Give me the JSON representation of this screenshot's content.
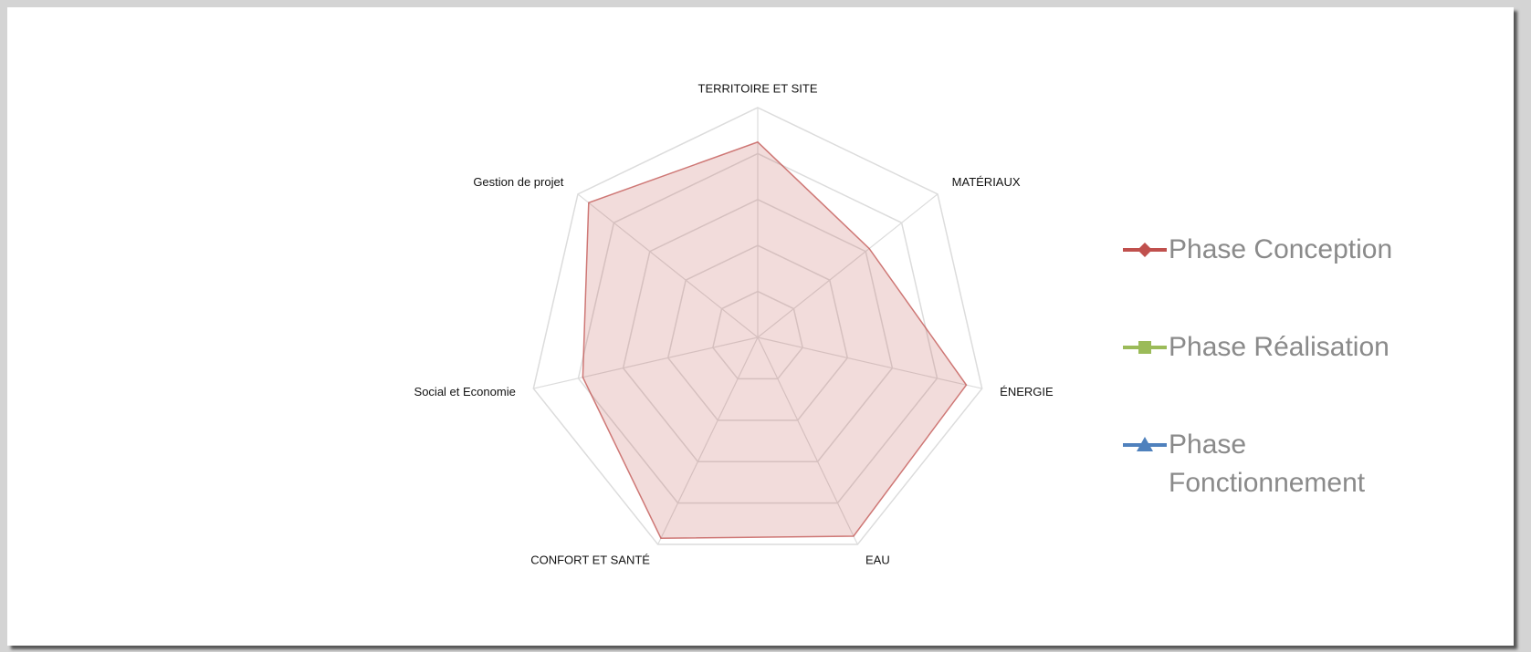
{
  "chart_data": {
    "type": "radar",
    "categories": [
      "TERRITOIRE ET SITE",
      "MATÉRIAUX",
      "ÉNERGIE",
      "EAU",
      "CONFORT ET SANTÉ",
      "Social et Economie",
      "Gestion de projet"
    ],
    "series": [
      {
        "name": "Phase Conception",
        "color": "#c0504d",
        "marker": "diamond",
        "values": [
          4.25,
          3.1,
          4.65,
          4.8,
          4.85,
          3.9,
          4.7
        ]
      },
      {
        "name": "Phase Réalisation",
        "color": "#9bbb59",
        "marker": "square",
        "values": [
          null,
          null,
          null,
          null,
          null,
          null,
          null
        ]
      },
      {
        "name": "Phase Fonctionnement",
        "color": "#4f81bd",
        "marker": "triangle",
        "values": [
          null,
          null,
          null,
          null,
          null,
          null,
          null
        ]
      }
    ],
    "rlim": [
      0,
      5
    ],
    "rticks": [
      1,
      2,
      3,
      4,
      5
    ],
    "grid": true,
    "legend": "right"
  }
}
